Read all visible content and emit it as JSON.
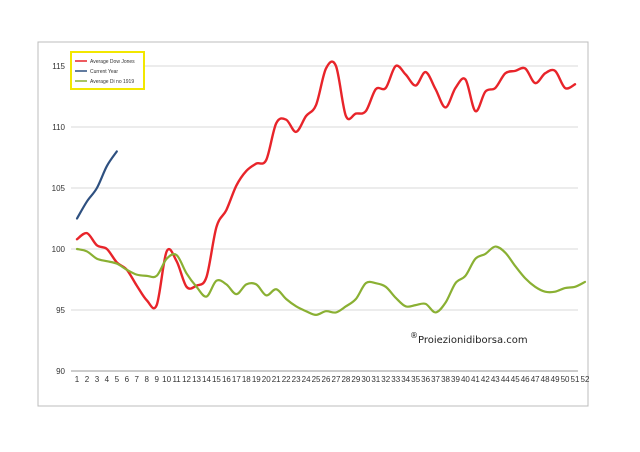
{
  "chart_data": {
    "type": "line",
    "x": [
      1,
      2,
      3,
      4,
      5,
      6,
      7,
      8,
      9,
      10,
      11,
      12,
      13,
      14,
      15,
      16,
      17,
      18,
      19,
      20,
      21,
      22,
      23,
      24,
      25,
      26,
      27,
      28,
      29,
      30,
      31,
      32,
      33,
      34,
      35,
      36,
      37,
      38,
      39,
      40,
      41,
      42,
      43,
      44,
      45,
      46,
      47,
      48,
      49,
      50,
      51,
      52
    ],
    "ylim": [
      90,
      117
    ],
    "yticks": [
      90,
      95,
      100,
      105,
      110,
      115
    ],
    "grid": "horizontal",
    "legend_position": "top-left",
    "series": [
      {
        "name": "Average Dow Jones",
        "color": "#e8242a",
        "values": [
          100.8,
          101.3,
          100.3,
          100.0,
          98.9,
          98.3,
          97.0,
          95.8,
          95.4,
          99.8,
          99.0,
          96.9,
          97.0,
          97.7,
          101.8,
          103.2,
          105.2,
          106.4,
          107.0,
          107.3,
          110.3,
          110.6,
          109.6,
          110.9,
          111.8,
          114.8,
          115.0,
          110.9,
          111.1,
          111.3,
          113.1,
          113.2,
          115.0,
          114.3,
          113.4,
          114.5,
          113.1,
          111.6,
          113.2,
          113.9,
          111.3,
          112.9,
          113.2,
          114.4,
          114.6,
          114.8,
          113.6,
          114.4,
          114.6,
          113.2,
          113.5,
          null
        ]
      },
      {
        "name": "Current Year",
        "color": "#2e5080",
        "values": [
          102.5,
          103.9,
          105.0,
          106.8,
          108.0,
          null,
          null,
          null,
          null,
          null,
          null,
          null,
          null,
          null,
          null,
          null,
          null,
          null,
          null,
          null,
          null,
          null,
          null,
          null,
          null,
          null,
          null,
          null,
          null,
          null,
          null,
          null,
          null,
          null,
          null,
          null,
          null,
          null,
          null,
          null,
          null,
          null,
          null,
          null,
          null,
          null,
          null,
          null,
          null,
          null,
          null,
          null
        ]
      },
      {
        "name": "Average Di no 1919",
        "color": "#8ab033",
        "values": [
          100.0,
          99.8,
          99.2,
          99.0,
          98.8,
          98.3,
          97.9,
          97.8,
          97.8,
          99.2,
          99.5,
          98.0,
          96.9,
          96.1,
          97.4,
          97.1,
          96.3,
          97.1,
          97.1,
          96.2,
          96.7,
          95.9,
          95.3,
          94.9,
          94.6,
          94.9,
          94.8,
          95.3,
          95.9,
          97.2,
          97.2,
          96.9,
          96.0,
          95.3,
          95.4,
          95.5,
          94.8,
          95.6,
          97.2,
          97.8,
          99.2,
          99.6,
          100.2,
          99.7,
          98.6,
          97.6,
          96.9,
          96.5,
          96.5,
          96.8,
          96.9,
          97.3
        ]
      }
    ]
  },
  "watermark": {
    "symbol": "®",
    "text": "Proiezionidiborsa.com"
  }
}
